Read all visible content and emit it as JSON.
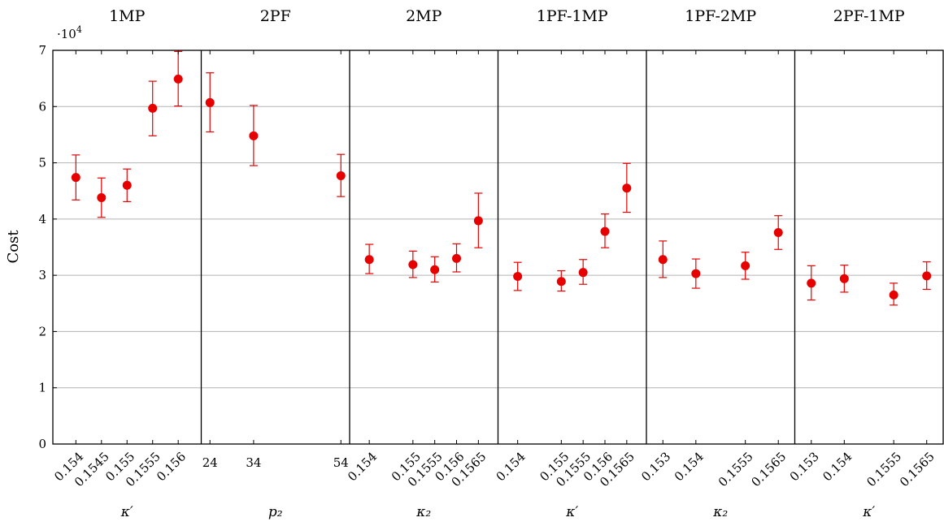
{
  "chart_data": {
    "type": "scatter",
    "ylabel": "Cost",
    "y_multiplier_label": "·10",
    "y_multiplier_exponent": "4",
    "ylim": [
      0,
      70000
    ],
    "yticks": [
      0,
      10000,
      20000,
      30000,
      40000,
      50000,
      60000,
      70000
    ],
    "ytick_labels": [
      "0",
      "1",
      "2",
      "3",
      "4",
      "5",
      "6",
      "7"
    ],
    "grid": "horizontal",
    "marker_color": "#e60000",
    "panels": [
      {
        "title": "1MP",
        "xlabel": "κ′",
        "x": [
          0.154,
          0.1545,
          0.155,
          0.1555,
          0.156
        ],
        "x_labels": [
          "0.154",
          "0.1545",
          "0.155",
          "0.1555",
          "0.156"
        ],
        "xlim": [
          0.15355,
          0.15645
        ],
        "y": [
          47400,
          43800,
          46000,
          59700,
          64900
        ],
        "y_low": [
          43400,
          40300,
          43100,
          54800,
          60100
        ],
        "y_high": [
          51400,
          47300,
          48900,
          64500,
          69800
        ]
      },
      {
        "title": "2PF",
        "xlabel": "p₂",
        "x": [
          24,
          34,
          54
        ],
        "x_labels": [
          "24",
          "34",
          "54"
        ],
        "xlim": [
          22,
          56
        ],
        "y": [
          60700,
          54800,
          47700
        ],
        "y_low": [
          55500,
          49500,
          44000
        ],
        "y_high": [
          66000,
          60200,
          51500
        ]
      },
      {
        "title": "2MP",
        "xlabel": "κ₂",
        "x": [
          0.154,
          0.155,
          0.1555,
          0.156,
          0.1565
        ],
        "x_labels": [
          "0.154",
          "0.155",
          "0.1555",
          "0.156",
          "0.1565"
        ],
        "xlim": [
          0.15355,
          0.15695
        ],
        "y": [
          32800,
          31900,
          31000,
          33000,
          39700
        ],
        "y_low": [
          30300,
          29600,
          28800,
          30600,
          34900
        ],
        "y_high": [
          35500,
          34300,
          33300,
          35600,
          44600
        ]
      },
      {
        "title": "1PF-1MP",
        "xlabel": "κ′",
        "x": [
          0.154,
          0.155,
          0.1555,
          0.156,
          0.1565
        ],
        "x_labels": [
          "0.154",
          "0.155",
          "0.1555",
          "0.156",
          "0.1565"
        ],
        "xlim": [
          0.15355,
          0.15695
        ],
        "y": [
          29800,
          28900,
          30500,
          37800,
          45500
        ],
        "y_low": [
          27300,
          27200,
          28400,
          34900,
          41200
        ],
        "y_high": [
          32300,
          30800,
          32800,
          40900,
          49900
        ]
      },
      {
        "title": "1PF-2MP",
        "xlabel": "κ₂",
        "x": [
          0.153,
          0.154,
          0.1555,
          0.1565
        ],
        "x_labels": [
          "0.153",
          "0.154",
          "0.1555",
          "0.1565"
        ],
        "xlim": [
          0.1525,
          0.157
        ],
        "y": [
          32800,
          30300,
          31700,
          37600
        ],
        "y_low": [
          29600,
          27700,
          29300,
          34600
        ],
        "y_high": [
          36100,
          32900,
          34100,
          40600
        ]
      },
      {
        "title": "2PF-1MP",
        "xlabel": "κ′",
        "x": [
          0.153,
          0.154,
          0.1555,
          0.1565
        ],
        "x_labels": [
          "0.153",
          "0.154",
          "0.1555",
          "0.1565"
        ],
        "xlim": [
          0.1525,
          0.157
        ],
        "y": [
          28600,
          29400,
          26500,
          29900
        ],
        "y_low": [
          25600,
          27000,
          24700,
          27500
        ],
        "y_high": [
          31700,
          31800,
          28600,
          32400
        ]
      }
    ]
  }
}
